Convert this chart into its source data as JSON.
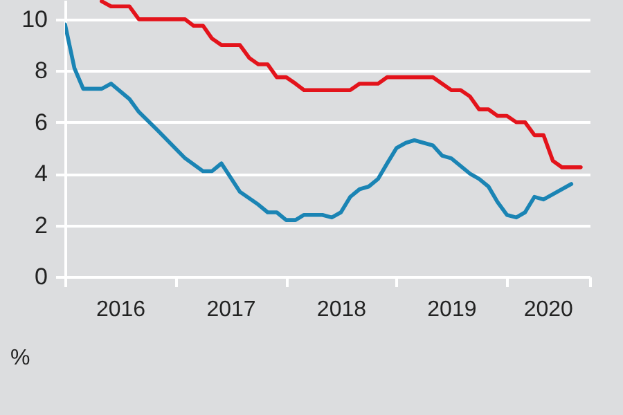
{
  "chart_data": {
    "type": "line",
    "ylabel": "%",
    "xlim": [
      "2016-01",
      "2020-10"
    ],
    "xticks": [
      {
        "value": "2016-01",
        "label": null
      },
      {
        "value": "2016-07",
        "label": "2016"
      },
      {
        "value": "2017-01",
        "label": null
      },
      {
        "value": "2017-07",
        "label": "2017"
      },
      {
        "value": "2018-01",
        "label": null
      },
      {
        "value": "2018-07",
        "label": "2018"
      },
      {
        "value": "2019-01",
        "label": null
      },
      {
        "value": "2019-07",
        "label": "2019"
      },
      {
        "value": "2020-01",
        "label": null
      },
      {
        "value": "2020-05-15",
        "label": "2020"
      },
      {
        "value": "2020-10",
        "label": null
      }
    ],
    "ylim": [
      0,
      10.75
    ],
    "yticks": [
      0,
      2,
      4,
      6,
      8,
      10
    ],
    "grid": "y",
    "marker": "none",
    "line_style": "solid",
    "series": [
      {
        "color": "#e3131b",
        "x": [
          "2016-05",
          "2016-06",
          "2016-08",
          "2016-09",
          "2017-02",
          "2017-03",
          "2017-04",
          "2017-05",
          "2017-06",
          "2017-08",
          "2017-09",
          "2017-10",
          "2017-11",
          "2017-12",
          "2018-01",
          "2018-02",
          "2018-03",
          "2018-08",
          "2018-09",
          "2018-11",
          "2018-12",
          "2019-05",
          "2019-07",
          "2019-08",
          "2019-09",
          "2019-10",
          "2019-11",
          "2019-12",
          "2020-01",
          "2020-02",
          "2020-03",
          "2020-04",
          "2020-05",
          "2020-06",
          "2020-07",
          "2020-09"
        ],
        "values": [
          10.7,
          10.5,
          10.5,
          10.0,
          10.0,
          9.75,
          9.75,
          9.25,
          9.0,
          9.0,
          8.5,
          8.25,
          8.25,
          7.75,
          7.75,
          7.5,
          7.25,
          7.25,
          7.5,
          7.5,
          7.75,
          7.75,
          7.25,
          7.25,
          7.0,
          6.5,
          6.5,
          6.25,
          6.25,
          6.0,
          6.0,
          5.5,
          5.5,
          4.5,
          4.25,
          4.25
        ]
      },
      {
        "color": "#1a84b4",
        "x": [
          "2016-01",
          "2016-02",
          "2016-03",
          "2016-05",
          "2016-06",
          "2016-08",
          "2016-09",
          "2016-11",
          "2017-02",
          "2017-04",
          "2017-05",
          "2017-06",
          "2017-08",
          "2017-10",
          "2017-11",
          "2017-12",
          "2018-01",
          "2018-02",
          "2018-03",
          "2018-05",
          "2018-06",
          "2018-07",
          "2018-08",
          "2018-09",
          "2018-10",
          "2018-11",
          "2018-12",
          "2019-01",
          "2019-02",
          "2019-03",
          "2019-05",
          "2019-06",
          "2019-07",
          "2019-09",
          "2019-10",
          "2019-11",
          "2019-12",
          "2020-01",
          "2020-02",
          "2020-03",
          "2020-04",
          "2020-05",
          "2020-08"
        ],
        "values": [
          9.8,
          8.1,
          7.3,
          7.3,
          7.5,
          6.9,
          6.4,
          5.7,
          4.6,
          4.1,
          4.1,
          4.4,
          3.3,
          2.8,
          2.5,
          2.5,
          2.2,
          2.2,
          2.4,
          2.4,
          2.3,
          2.5,
          3.1,
          3.4,
          3.5,
          3.8,
          4.4,
          5.0,
          5.2,
          5.3,
          5.1,
          4.7,
          4.6,
          4.0,
          3.8,
          3.5,
          2.9,
          2.4,
          2.3,
          2.5,
          3.1,
          3.0,
          3.6
        ]
      }
    ]
  }
}
